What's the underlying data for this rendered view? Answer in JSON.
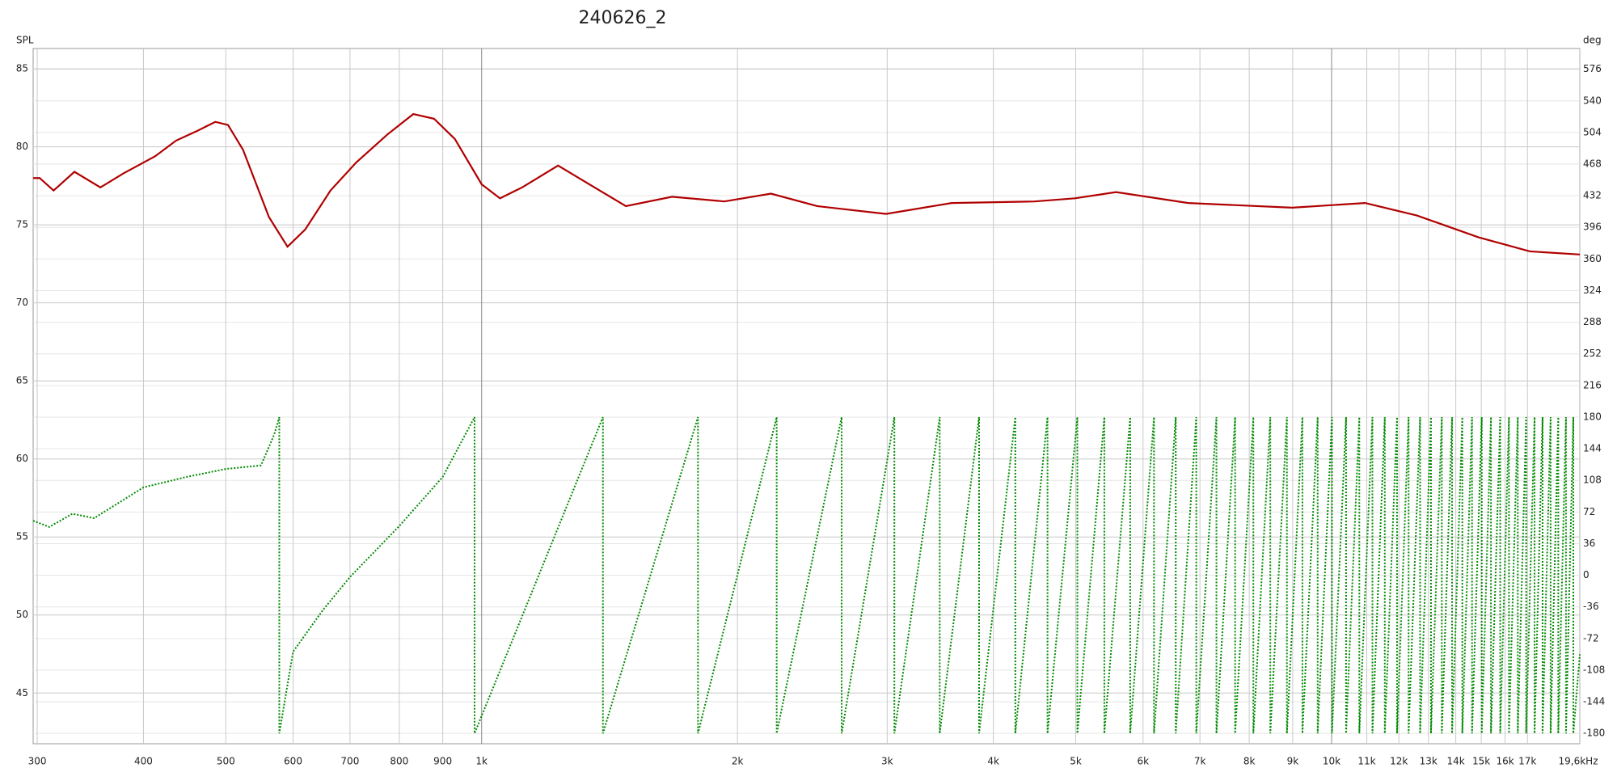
{
  "chart_data": {
    "type": "line",
    "title": "240626_2",
    "y_label": "SPL",
    "y2_label": "deg",
    "log_x": true,
    "grid": true,
    "xlim": [
      296.7,
      19590
    ],
    "ylim": [
      41.75,
      86.3
    ],
    "y2lim": [
      -191.8,
      599.6
    ],
    "xticks": [
      300,
      400,
      500,
      600,
      700,
      800,
      900,
      {
        "value": 1000,
        "label": "1k"
      },
      {
        "value": 2000,
        "label": "2k"
      },
      {
        "value": 3000,
        "label": "3k"
      },
      {
        "value": 4000,
        "label": "4k"
      },
      {
        "value": 5000,
        "label": "5k"
      },
      {
        "value": 6000,
        "label": "6k"
      },
      {
        "value": 7000,
        "label": "7k"
      },
      {
        "value": 8000,
        "label": "8k"
      },
      {
        "value": 9000,
        "label": "9k"
      },
      {
        "value": 10000,
        "label": "10k"
      },
      {
        "value": 11000,
        "label": "11k"
      },
      {
        "value": 12000,
        "label": "12k"
      },
      {
        "value": 13000,
        "label": "13k"
      },
      {
        "value": 14000,
        "label": "14k"
      },
      {
        "value": 15000,
        "label": "15k"
      },
      {
        "value": 16000,
        "label": "16k"
      },
      {
        "value": 17000,
        "label": "17k"
      },
      {
        "value": 19600,
        "label": "19,6kHz"
      }
    ],
    "yticks": [
      45,
      50,
      55,
      60,
      65,
      70,
      75,
      80,
      85
    ],
    "y2ticks": [
      -180,
      -144,
      -108,
      -72,
      -36,
      0,
      36,
      72,
      108,
      144,
      180,
      216,
      252,
      288,
      324,
      360,
      396,
      432,
      468,
      504,
      540,
      576
    ],
    "series": [
      {
        "color": "#b00000",
        "x": [
          296.7,
          302,
          313.6,
          331.8,
          356,
          379,
          413,
          437,
          462,
          486,
          503,
          524,
          562,
          591,
          620,
          664,
          712,
          775,
          831,
          879,
          930,
          1000,
          1051,
          1116,
          1230,
          1377,
          1478,
          1675,
          1930,
          2190,
          2482,
          2991,
          3573,
          4471,
          4988,
          5578,
          6781,
          8988,
          10950,
          12600,
          14890,
          17110,
          19590
        ],
        "values": [
          78.0,
          78.0,
          77.2,
          78.4,
          77.4,
          78.3,
          79.4,
          80.4,
          81.0,
          81.6,
          81.4,
          79.8,
          75.5,
          73.6,
          74.7,
          77.2,
          79.0,
          80.8,
          82.1,
          81.8,
          80.5,
          77.6,
          76.7,
          77.4,
          78.8,
          77.2,
          76.2,
          76.8,
          76.5,
          77.0,
          76.2,
          75.7,
          76.4,
          76.5,
          76.7,
          77.1,
          76.4,
          76.1,
          76.4,
          75.6,
          74.2,
          73.3,
          73.1
        ]
      },
      {
        "color": "#008a00",
        "axis": "y2",
        "x": [
          296.7,
          310,
          330,
          350,
          400,
          450,
          500,
          550,
          570,
          578,
          578,
          600,
          650,
          700,
          800,
          900,
          981,
          981,
          1389,
          1389,
          1797,
          1797,
          2224,
          2224,
          2652,
          2652,
          3059,
          3059,
          3459,
          3459,
          3848,
          3848,
          4245,
          4245,
          4632,
          4632,
          5022,
          5022,
          5403,
          5403,
          5795,
          5795,
          6181,
          6181,
          6556,
          6556,
          6931,
          6931,
          7320,
          7320,
          7700,
          7700,
          8090,
          8090,
          8470,
          8470,
          8860,
          8860,
          9240,
          9240,
          9630,
          9630,
          10010,
          10010,
          10400,
          10400,
          10780,
          10780,
          11170,
          11170,
          11550,
          11550,
          11940,
          11940,
          12320,
          12320,
          12710,
          12710,
          13090,
          13090,
          13480,
          13480,
          13860,
          13860,
          14250,
          14250,
          14630,
          14630,
          15020,
          15020,
          15400,
          15400,
          15790,
          15790,
          16170,
          16170,
          16560,
          16560,
          16940,
          16940,
          17330,
          17330,
          17710,
          17710,
          18100,
          18100,
          18480,
          18480,
          18870,
          18870,
          19250,
          19250,
          19590
        ],
        "values": [
          62,
          55,
          70,
          65,
          100,
          112,
          121,
          125,
          160,
          180,
          -180,
          -87,
          -40,
          -2,
          56,
          112,
          180,
          -180,
          180,
          -180,
          180,
          -180,
          180,
          -180,
          180,
          -180,
          180,
          -180,
          180,
          -180,
          180,
          -180,
          180,
          -180,
          180,
          -180,
          180,
          -180,
          180,
          -180,
          180,
          -180,
          180,
          -180,
          180,
          -180,
          180,
          -180,
          180,
          -180,
          180,
          -180,
          180,
          -180,
          180,
          -180,
          180,
          -180,
          180,
          -180,
          180,
          -180,
          180,
          -180,
          180,
          -180,
          180,
          -180,
          180,
          -180,
          180,
          -180,
          180,
          -180,
          180,
          -180,
          180,
          -180,
          180,
          -180,
          180,
          -180,
          180,
          -180,
          180,
          -180,
          180,
          -180,
          180,
          -180,
          180,
          -180,
          180,
          -180,
          180,
          -180,
          180,
          -180,
          180,
          -180,
          180,
          -180,
          180,
          -180,
          180,
          -180,
          180,
          -180,
          180,
          -180,
          180,
          -180,
          -90
        ]
      }
    ]
  }
}
